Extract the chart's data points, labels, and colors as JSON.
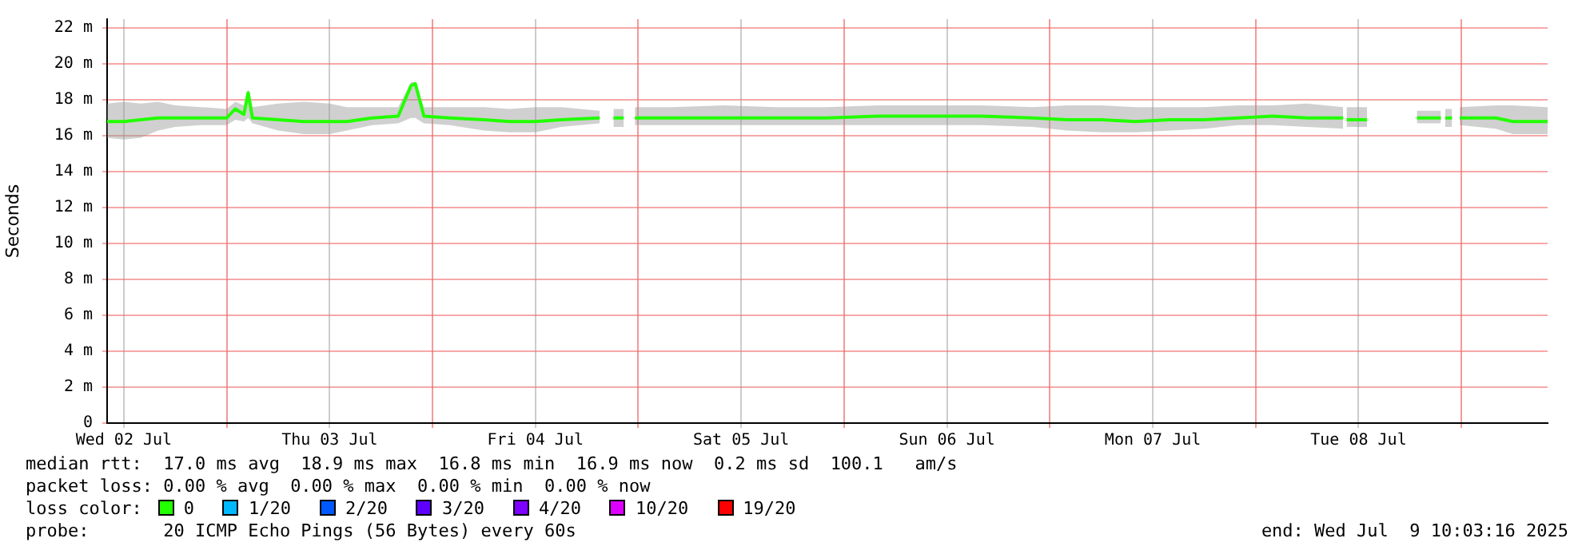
{
  "chart_data": {
    "type": "line",
    "ylabel": "Seconds",
    "xlim": [
      "2025-07-02T10:03",
      "2025-07-09T10:03"
    ],
    "xticks": [
      {
        "value": "2025-07-02T12:00",
        "label": "Wed 02 Jul"
      },
      {
        "value": "2025-07-03T00:00",
        "label": null
      },
      {
        "value": "2025-07-03T12:00",
        "label": "Thu 03 Jul"
      },
      {
        "value": "2025-07-04T00:00",
        "label": null
      },
      {
        "value": "2025-07-04T12:00",
        "label": "Fri 04 Jul"
      },
      {
        "value": "2025-07-05T00:00",
        "label": null
      },
      {
        "value": "2025-07-05T12:00",
        "label": "Sat 05 Jul"
      },
      {
        "value": "2025-07-06T00:00",
        "label": null
      },
      {
        "value": "2025-07-06T12:00",
        "label": "Sun 06 Jul"
      },
      {
        "value": "2025-07-07T00:00",
        "label": null
      },
      {
        "value": "2025-07-07T12:00",
        "label": "Mon 07 Jul"
      },
      {
        "value": "2025-07-08T00:00",
        "label": null
      },
      {
        "value": "2025-07-08T12:00",
        "label": "Tue 08 Jul"
      },
      {
        "value": "2025-07-09T00:00",
        "label": null
      }
    ],
    "ylim": [
      0,
      22.5
    ],
    "yticks": [
      0,
      {
        "value": 2,
        "label": "2 m"
      },
      {
        "value": 4,
        "label": "4 m"
      },
      {
        "value": 6,
        "label": "6 m"
      },
      {
        "value": 8,
        "label": "8 m"
      },
      {
        "value": 10,
        "label": "10 m"
      },
      {
        "value": 12,
        "label": "12 m"
      },
      {
        "value": 14,
        "label": "14 m"
      },
      {
        "value": 16,
        "label": "16 m"
      },
      {
        "value": 18,
        "label": "18 m"
      },
      {
        "value": 20,
        "label": "20 m"
      },
      {
        "value": 22,
        "label": "22 m"
      }
    ],
    "grid": true,
    "legend": "bottom left",
    "legend_title": "loss color:",
    "x": [
      "2025-07-02T10:03",
      "2025-07-02T12:00",
      "2025-07-02T14:00",
      "2025-07-02T16:00",
      "2025-07-02T18:00",
      "2025-07-02T21:00",
      "2025-07-03T00:00",
      "2025-07-03T01:00",
      "2025-07-03T02:00",
      "2025-07-03T02:30",
      "2025-07-03T03:00",
      "2025-07-03T06:00",
      "2025-07-03T09:00",
      "2025-07-03T12:00",
      "2025-07-03T14:00",
      "2025-07-03T17:00",
      "2025-07-03T20:00",
      "2025-07-03T21:30",
      "2025-07-03T22:00",
      "2025-07-03T23:00",
      "2025-07-04T02:00",
      "2025-07-04T06:00",
      "2025-07-04T09:00",
      "2025-07-04T12:00",
      "2025-07-04T15:00",
      "2025-07-04T19:30",
      "2025-07-04T20:24",
      "2025-07-04T21:06",
      "2025-07-04T22:18",
      "2025-07-04T22:48",
      "2025-07-04T23:36",
      "2025-07-05T04:00",
      "2025-07-05T10:00",
      "2025-07-05T16:00",
      "2025-07-05T22:00",
      "2025-07-06T04:00",
      "2025-07-06T10:00",
      "2025-07-06T16:00",
      "2025-07-06T22:00",
      "2025-07-07T02:00",
      "2025-07-07T06:00",
      "2025-07-07T10:00",
      "2025-07-07T14:00",
      "2025-07-07T18:00",
      "2025-07-07T22:00",
      "2025-07-08T02:00",
      "2025-07-08T06:00",
      "2025-07-08T10:12",
      "2025-07-08T10:24",
      "2025-07-08T10:36",
      "2025-07-08T13:00",
      "2025-07-08T16:00",
      "2025-07-08T18:48",
      "2025-07-08T21:36",
      "2025-07-08T21:50",
      "2025-07-08T22:06",
      "2025-07-08T22:54",
      "2025-07-08T23:12",
      "2025-07-08T23:48",
      "2025-07-09T04:00",
      "2025-07-09T06:00",
      "2025-07-09T10:03"
    ],
    "series": [
      {
        "name": "0",
        "color": "#22ff00",
        "values": [
          16.8,
          16.8,
          16.9,
          17.0,
          17.0,
          17.0,
          17.0,
          17.5,
          17.2,
          18.4,
          17.0,
          16.9,
          16.8,
          16.8,
          16.8,
          17.0,
          17.1,
          18.8,
          18.9,
          17.1,
          17.0,
          16.9,
          16.8,
          16.8,
          16.9,
          17.0,
          null,
          17.0,
          17.0,
          null,
          17.0,
          17.0,
          17.0,
          17.0,
          17.0,
          17.1,
          17.1,
          17.1,
          17.0,
          16.9,
          16.9,
          16.8,
          16.9,
          16.9,
          17.0,
          17.1,
          17.0,
          17.0,
          null,
          16.9,
          16.9,
          null,
          17.0,
          17.0,
          null,
          17.0,
          17.0,
          null,
          17.0,
          17.0,
          16.8,
          16.8
        ],
        "lower": [
          15.9,
          15.8,
          15.9,
          16.3,
          16.5,
          16.6,
          16.6,
          16.9,
          16.8,
          17.0,
          16.7,
          16.3,
          16.1,
          16.1,
          16.3,
          16.6,
          16.7,
          17.0,
          17.0,
          16.7,
          16.6,
          16.3,
          16.2,
          16.2,
          16.5,
          16.7,
          null,
          16.5,
          16.5,
          null,
          16.6,
          16.6,
          16.6,
          16.6,
          16.6,
          16.6,
          16.6,
          16.6,
          16.5,
          16.3,
          16.2,
          16.2,
          16.3,
          16.4,
          16.6,
          16.6,
          16.5,
          16.4,
          null,
          16.5,
          16.5,
          null,
          16.7,
          16.7,
          null,
          16.5,
          16.5,
          null,
          16.6,
          16.4,
          16.1,
          16.1
        ],
        "upper": [
          17.8,
          17.9,
          17.8,
          17.9,
          17.7,
          17.6,
          17.5,
          17.9,
          17.7,
          18.6,
          17.6,
          17.8,
          17.9,
          17.8,
          17.6,
          17.6,
          17.6,
          19.0,
          19.0,
          17.6,
          17.6,
          17.6,
          17.5,
          17.6,
          17.6,
          17.4,
          null,
          17.5,
          17.5,
          null,
          17.6,
          17.6,
          17.7,
          17.6,
          17.6,
          17.7,
          17.7,
          17.7,
          17.6,
          17.7,
          17.7,
          17.6,
          17.6,
          17.6,
          17.7,
          17.7,
          17.8,
          17.6,
          null,
          17.6,
          17.6,
          null,
          17.4,
          17.4,
          null,
          17.5,
          17.5,
          null,
          17.6,
          17.7,
          17.7,
          17.6
        ]
      },
      {
        "name": "1/20",
        "color": "#00b8ff",
        "values": [
          null,
          null,
          null,
          null,
          null,
          null,
          null,
          null,
          null,
          null,
          null,
          null,
          null,
          null,
          null,
          null,
          null,
          null,
          null,
          null,
          null,
          null,
          null,
          null,
          null,
          null,
          null,
          null,
          null,
          null,
          null,
          null,
          null,
          null,
          null,
          null,
          null,
          null,
          null,
          null,
          null,
          null,
          null,
          null,
          null,
          null,
          null,
          null,
          null,
          null,
          null,
          null,
          null,
          null,
          null,
          null,
          null,
          null,
          null,
          null,
          null,
          null
        ]
      },
      {
        "name": "2/20",
        "color": "#0059ff",
        "values": [
          null,
          null,
          null,
          null,
          null,
          null,
          null,
          null,
          null,
          null,
          null,
          null,
          null,
          null,
          null,
          null,
          null,
          null,
          null,
          null,
          null,
          null,
          null,
          null,
          null,
          null,
          null,
          null,
          null,
          null,
          null,
          null,
          null,
          null,
          null,
          null,
          null,
          null,
          null,
          null,
          null,
          null,
          null,
          null,
          null,
          null,
          null,
          null,
          null,
          null,
          null,
          null,
          null,
          null,
          null,
          null,
          null,
          null,
          null,
          null,
          null,
          null
        ]
      },
      {
        "name": "3/20",
        "color": "#5e00ff",
        "values": [
          null,
          null,
          null,
          null,
          null,
          null,
          null,
          null,
          null,
          null,
          null,
          null,
          null,
          null,
          null,
          null,
          null,
          null,
          null,
          null,
          null,
          null,
          null,
          null,
          null,
          null,
          null,
          null,
          null,
          null,
          null,
          null,
          null,
          null,
          null,
          null,
          null,
          null,
          null,
          null,
          null,
          null,
          null,
          null,
          null,
          null,
          null,
          null,
          null,
          null,
          null,
          null,
          null,
          null,
          null,
          null,
          null,
          null,
          null,
          null,
          null,
          null
        ]
      },
      {
        "name": "4/20",
        "color": "#7e00ff",
        "values": [
          null,
          null,
          null,
          null,
          null,
          null,
          null,
          null,
          null,
          null,
          null,
          null,
          null,
          null,
          null,
          null,
          null,
          null,
          null,
          null,
          null,
          null,
          null,
          null,
          null,
          null,
          null,
          null,
          null,
          null,
          null,
          null,
          null,
          null,
          null,
          null,
          null,
          null,
          null,
          null,
          null,
          null,
          null,
          null,
          null,
          null,
          null,
          null,
          null,
          null,
          null,
          null,
          null,
          null,
          null,
          null,
          null,
          null,
          null,
          null,
          null,
          null
        ]
      },
      {
        "name": "10/20",
        "color": "#dd00ff",
        "values": [
          null,
          null,
          null,
          null,
          null,
          null,
          null,
          null,
          null,
          null,
          null,
          null,
          null,
          null,
          null,
          null,
          null,
          null,
          null,
          null,
          null,
          null,
          null,
          null,
          null,
          null,
          null,
          null,
          null,
          null,
          null,
          null,
          null,
          null,
          null,
          null,
          null,
          null,
          null,
          null,
          null,
          null,
          null,
          null,
          null,
          null,
          null,
          null,
          null,
          null,
          null,
          null,
          null,
          null,
          null,
          null,
          null,
          null,
          null,
          null,
          null,
          null
        ]
      },
      {
        "name": "19/20",
        "color": "#ff0000",
        "values": [
          null,
          null,
          null,
          null,
          null,
          null,
          null,
          null,
          null,
          null,
          null,
          null,
          null,
          null,
          null,
          null,
          null,
          null,
          null,
          null,
          null,
          null,
          null,
          null,
          null,
          null,
          null,
          null,
          null,
          null,
          null,
          null,
          null,
          null,
          null,
          null,
          null,
          null,
          null,
          null,
          null,
          null,
          null,
          null,
          null,
          null,
          null,
          null,
          null,
          null,
          null,
          null,
          null,
          null,
          null,
          null,
          null,
          null,
          null,
          null,
          null,
          null
        ]
      }
    ],
    "annotations": [
      "median rtt:  17.0 ms avg  18.9 ms max  16.8 ms min  16.9 ms now  0.2 ms sd  100.1   am/s",
      "packet loss: 0.00 % avg  0.00 % max  0.00 % min  0.00 % now",
      "probe:       20 ICMP Echo Pings (56 Bytes) every 60s",
      "end: Wed Jul  9 10:03:16 2025"
    ]
  }
}
